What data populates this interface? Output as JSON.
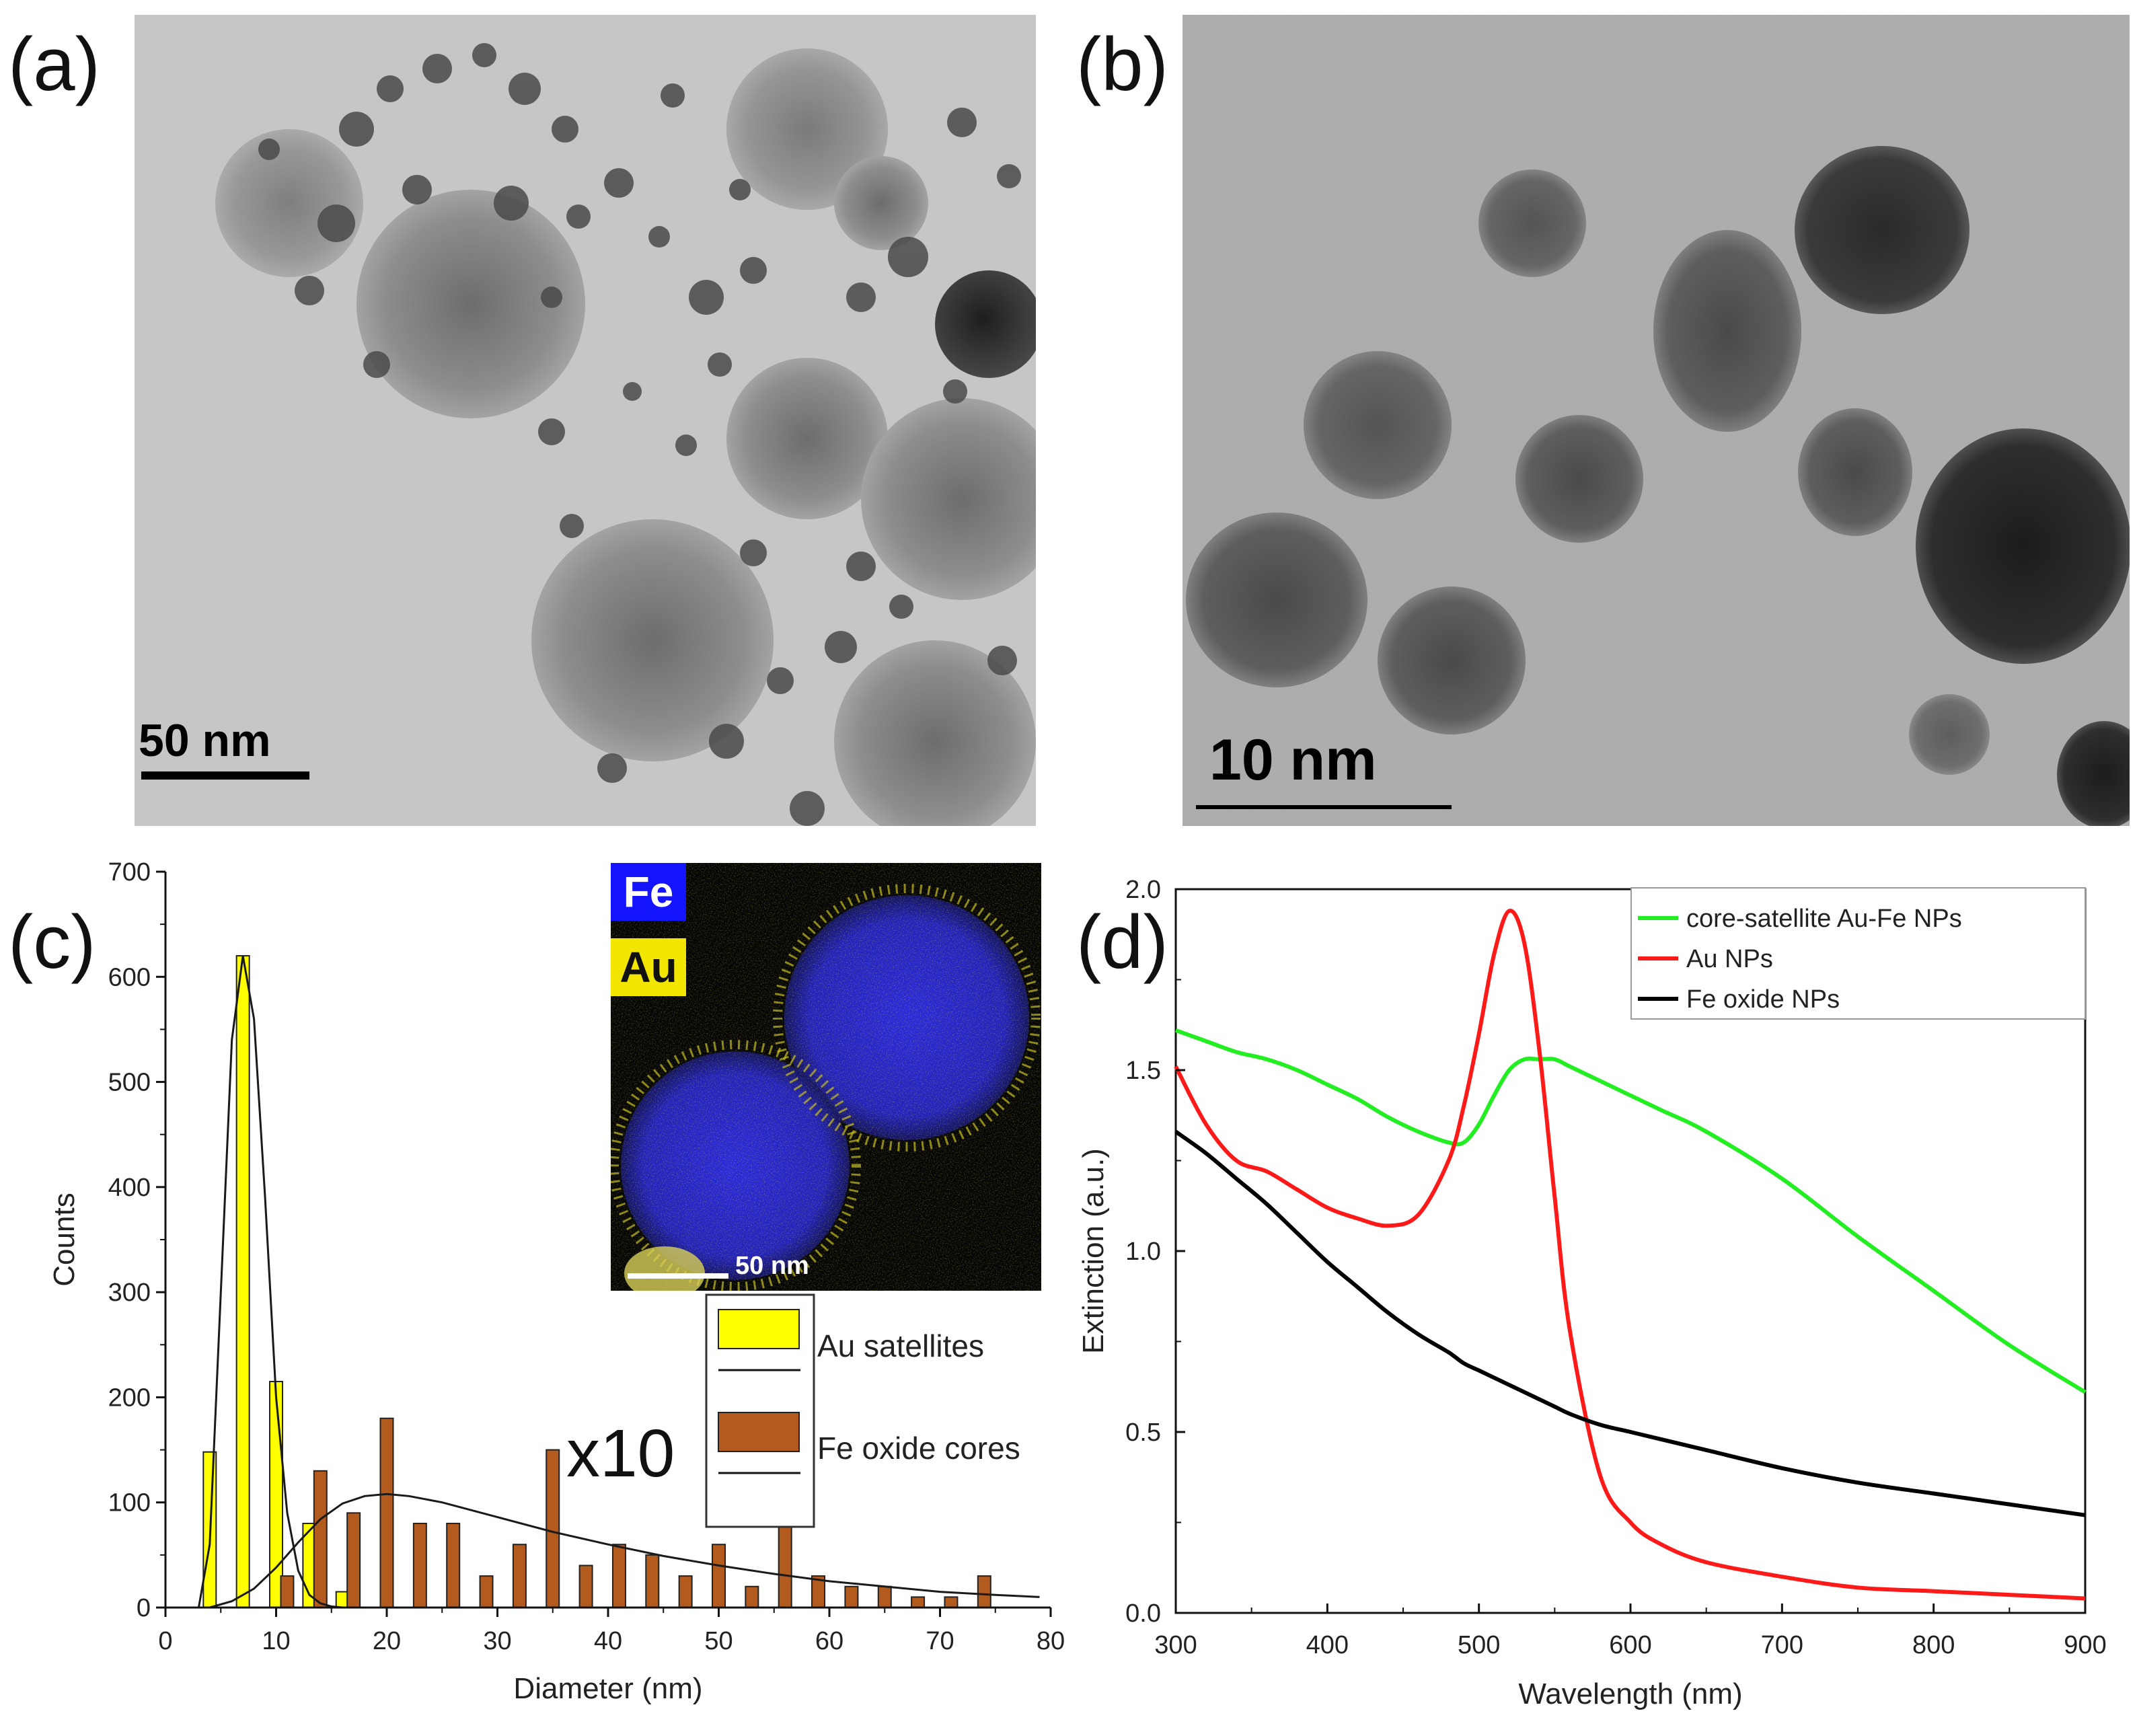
{
  "panels": {
    "a": {
      "label": "(a)",
      "scale_bar": "50 nm"
    },
    "b": {
      "label": "(b)",
      "scale_bar": "10 nm"
    },
    "c": {
      "label": "(c)"
    },
    "d": {
      "label": "(d)"
    }
  },
  "inset": {
    "fe_label": "Fe",
    "au_label": "Au",
    "scale_bar": "50 nm",
    "colors": {
      "fe": "#1414ff",
      "au": "#f2e600"
    }
  },
  "chart_data": [
    {
      "panel": "c",
      "type": "bar",
      "xlabel": "Diameter (nm)",
      "ylabel": "Counts",
      "xlim": [
        0,
        80
      ],
      "ylim": [
        0,
        700
      ],
      "xticks": [
        0,
        10,
        20,
        30,
        40,
        50,
        60,
        70,
        80
      ],
      "yticks": [
        0,
        100,
        200,
        300,
        400,
        500,
        600,
        700
      ],
      "annotation": "x10",
      "legend_position": "right-middle",
      "series": [
        {
          "name": "Au satellites",
          "color": "#ffff00",
          "x": [
            4,
            7,
            10,
            13,
            16
          ],
          "values": [
            148,
            620,
            215,
            80,
            15
          ]
        },
        {
          "name": "Fe oxide cores",
          "color": "#b35a1f",
          "x": [
            11,
            14,
            17,
            20,
            23,
            26,
            29,
            32,
            35,
            38,
            41,
            44,
            47,
            50,
            53,
            56,
            59,
            62,
            65,
            68,
            71,
            74
          ],
          "values": [
            30,
            130,
            90,
            180,
            80,
            80,
            30,
            60,
            150,
            40,
            60,
            50,
            30,
            60,
            20,
            80,
            30,
            20,
            20,
            10,
            10,
            30
          ]
        }
      ],
      "fits": [
        {
          "x": [
            3,
            4,
            5,
            6,
            7,
            8,
            9,
            10,
            11,
            12,
            13,
            14,
            15,
            16,
            18,
            20
          ],
          "y": [
            0,
            60,
            300,
            540,
            620,
            560,
            390,
            200,
            90,
            35,
            12,
            4,
            1,
            0,
            0,
            0
          ]
        },
        {
          "x": [
            4,
            6,
            8,
            10,
            12,
            14,
            16,
            18,
            20,
            22,
            25,
            30,
            35,
            40,
            45,
            50,
            55,
            60,
            65,
            70,
            75,
            79
          ],
          "y": [
            0,
            6,
            18,
            38,
            62,
            84,
            99,
            106,
            108,
            106,
            100,
            86,
            72,
            60,
            49,
            40,
            32,
            25,
            20,
            15,
            12,
            10
          ]
        }
      ]
    },
    {
      "panel": "d",
      "type": "line",
      "xlabel": "Wavelength (nm)",
      "ylabel": "Extinction (a.u.)",
      "xlim": [
        300,
        900
      ],
      "ylim": [
        0.0,
        2.0
      ],
      "xticks": [
        300,
        400,
        500,
        600,
        700,
        800,
        900
      ],
      "yticks": [
        "0.0",
        "0.5",
        "1.0",
        "1.5",
        "2.0"
      ],
      "legend_position": "top-right",
      "x": [
        300,
        320,
        340,
        360,
        380,
        400,
        420,
        440,
        460,
        480,
        490,
        500,
        510,
        520,
        530,
        540,
        550,
        560,
        580,
        600,
        620,
        650,
        700,
        750,
        800,
        850,
        900
      ],
      "series": [
        {
          "name": "core-satellite Au-Fe NPs",
          "color": "#22ee22",
          "values": [
            1.61,
            1.58,
            1.55,
            1.53,
            1.5,
            1.46,
            1.42,
            1.37,
            1.33,
            1.3,
            1.3,
            1.35,
            1.43,
            1.5,
            1.53,
            1.53,
            1.53,
            1.51,
            1.47,
            1.43,
            1.39,
            1.33,
            1.2,
            1.04,
            0.89,
            0.74,
            0.61
          ]
        },
        {
          "name": "Au NPs",
          "color": "#ff1a1a",
          "values": [
            1.51,
            1.35,
            1.25,
            1.22,
            1.17,
            1.12,
            1.09,
            1.07,
            1.1,
            1.25,
            1.4,
            1.6,
            1.82,
            1.94,
            1.85,
            1.55,
            1.15,
            0.78,
            0.38,
            0.25,
            0.19,
            0.14,
            0.1,
            0.07,
            0.06,
            0.05,
            0.04
          ]
        },
        {
          "name": "Fe oxide NPs",
          "color": "#000000",
          "values": [
            1.33,
            1.27,
            1.2,
            1.13,
            1.05,
            0.97,
            0.9,
            0.83,
            0.77,
            0.72,
            0.69,
            0.67,
            0.65,
            0.63,
            0.61,
            0.59,
            0.57,
            0.55,
            0.52,
            0.5,
            0.48,
            0.45,
            0.4,
            0.36,
            0.33,
            0.3,
            0.27
          ]
        }
      ]
    }
  ]
}
